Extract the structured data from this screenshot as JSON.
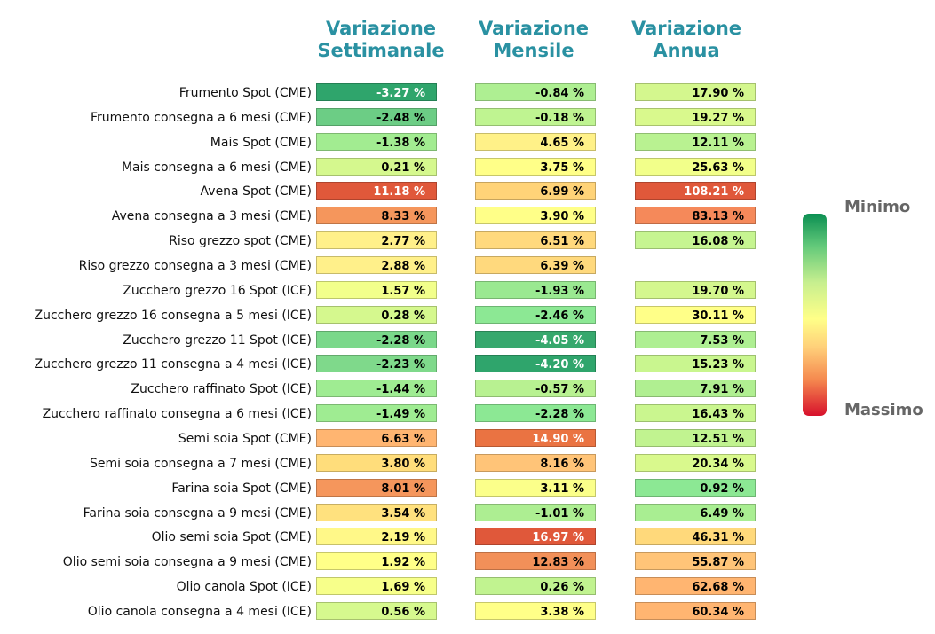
{
  "chart_data": {
    "type": "heatmap",
    "columns": [
      "Variazione Settimanale",
      "Variazione Mensile",
      "Variazione Annua"
    ],
    "rows": [
      "Frumento Spot (CME)",
      "Frumento consegna a 6 mesi (CME)",
      "Mais Spot (CME)",
      "Mais consegna a 6 mesi (CME)",
      "Avena Spot (CME)",
      "Avena consegna a 3 mesi (CME)",
      "Riso grezzo spot (CME)",
      "Riso grezzo consegna a 3 mesi (CME)",
      "Zucchero grezzo 16 Spot (ICE)",
      "Zucchero grezzo 16 consegna a 5 mesi (ICE)",
      "Zucchero grezzo 11 Spot (ICE)",
      "Zucchero grezzo 11 consegna a 4 mesi (ICE)",
      "Zucchero raffinato Spot (ICE)",
      "Zucchero raffinato consegna a 6 mesi (ICE)",
      "Semi soia Spot (CME)",
      "Semi soia consegna a 7 mesi (CME)",
      "Farina soia Spot (CME)",
      "Farina soia consegna a 9 mesi (CME)",
      "Olio semi soia Spot (CME)",
      "Olio semi soia consegna a 9 mesi (CME)",
      "Olio canola Spot (ICE)",
      "Olio canola consegna a 4 mesi (ICE)"
    ],
    "values": [
      [
        -3.27,
        -0.84,
        17.9
      ],
      [
        -2.48,
        -0.18,
        19.27
      ],
      [
        -1.38,
        4.65,
        12.11
      ],
      [
        0.21,
        3.75,
        25.63
      ],
      [
        11.18,
        6.99,
        108.21
      ],
      [
        8.33,
        3.9,
        83.13
      ],
      [
        2.77,
        6.51,
        16.08
      ],
      [
        2.88,
        6.39,
        null
      ],
      [
        1.57,
        -1.93,
        19.7
      ],
      [
        0.28,
        -2.46,
        30.11
      ],
      [
        -2.28,
        -4.05,
        7.53
      ],
      [
        -2.23,
        -4.2,
        15.23
      ],
      [
        -1.44,
        -0.57,
        7.91
      ],
      [
        -1.49,
        -2.28,
        16.43
      ],
      [
        6.63,
        14.9,
        12.51
      ],
      [
        3.8,
        8.16,
        20.34
      ],
      [
        8.01,
        3.11,
        0.92
      ],
      [
        3.54,
        -1.01,
        6.49
      ],
      [
        2.19,
        16.97,
        46.31
      ],
      [
        1.92,
        12.83,
        55.87
      ],
      [
        1.69,
        0.26,
        62.68
      ],
      [
        0.56,
        3.38,
        60.34
      ]
    ],
    "labels": [
      [
        "-3.27 %",
        "-0.84 %",
        "17.90 %"
      ],
      [
        "-2.48 %",
        "-0.18 %",
        "19.27 %"
      ],
      [
        "-1.38 %",
        "4.65 %",
        "12.11 %"
      ],
      [
        "0.21 %",
        "3.75 %",
        "25.63 %"
      ],
      [
        "11.18 %",
        "6.99 %",
        "108.21 %"
      ],
      [
        "8.33 %",
        "3.90 %",
        "83.13 %"
      ],
      [
        "2.77 %",
        "6.51 %",
        "16.08 %"
      ],
      [
        "2.88 %",
        "6.39 %",
        ""
      ],
      [
        "1.57 %",
        "-1.93 %",
        "19.70 %"
      ],
      [
        "0.28 %",
        "-2.46 %",
        "30.11 %"
      ],
      [
        "-2.28 %",
        "-4.05 %",
        "7.53 %"
      ],
      [
        "-2.23 %",
        "-4.20 %",
        "15.23 %"
      ],
      [
        "-1.44 %",
        "-0.57 %",
        "7.91 %"
      ],
      [
        "-1.49 %",
        "-2.28 %",
        "16.43 %"
      ],
      [
        "6.63 %",
        "14.90 %",
        "12.51 %"
      ],
      [
        "3.80 %",
        "8.16 %",
        "20.34 %"
      ],
      [
        "8.01 %",
        "3.11 %",
        "0.92 %"
      ],
      [
        "3.54 %",
        "-1.01 %",
        "6.49 %"
      ],
      [
        "2.19 %",
        "16.97 %",
        "46.31 %"
      ],
      [
        "1.92 %",
        "12.83 %",
        "55.87 %"
      ],
      [
        "1.69 %",
        "0.26 %",
        "62.68 %"
      ],
      [
        "0.56 %",
        "3.38 %",
        "60.34 %"
      ]
    ],
    "colors": [
      [
        "#2fa56c",
        "#aeef92",
        "#d4f78e"
      ],
      [
        "#6ccd85",
        "#bff491",
        "#d9f98d"
      ],
      [
        "#a2ec91",
        "#fff188",
        "#b9f291"
      ],
      [
        "#d5f88e",
        "#ffff88",
        "#f2ff8a"
      ],
      [
        "#e0583a",
        "#ffd378",
        "#e0583a"
      ],
      [
        "#f5965c",
        "#ffff88",
        "#f5895a"
      ],
      [
        "#fff08a",
        "#ffd97d",
        "#c6f591"
      ],
      [
        "#fff08a",
        "#ffd97d",
        null
      ],
      [
        "#f2ff8b",
        "#9ae991",
        "#d4f78e"
      ],
      [
        "#d5f88e",
        "#8ce894",
        "#ffff88"
      ],
      [
        "#7ad88a",
        "#36a86d",
        "#aeef92"
      ],
      [
        "#7fd98b",
        "#2fa56c",
        "#c9f68f"
      ],
      [
        "#9fec92",
        "#b8f191",
        "#b0ef91"
      ],
      [
        "#9fec92",
        "#8ce894",
        "#caf68f"
      ],
      [
        "#ffb571",
        "#ea7342",
        "#c1f390"
      ],
      [
        "#ffdd7b",
        "#ffc478",
        "#d9f98d"
      ],
      [
        "#f5965c",
        "#fbff8a",
        "#8ce894"
      ],
      [
        "#ffe17e",
        "#adee92",
        "#a9ee92"
      ],
      [
        "#fff888",
        "#e0583a",
        "#ffd97b"
      ],
      [
        "#ffff88",
        "#f29059",
        "#ffc478"
      ],
      [
        "#f7ff8a",
        "#c1f390",
        "#ffb571"
      ],
      [
        "#d6f98e",
        "#ffff88",
        "#ffb571"
      ]
    ],
    "dark_text_color": "#000000",
    "light_text_color": "#ffffff",
    "legend": {
      "top_label": "Minimo",
      "bottom_label": "Massimo",
      "placement": "right"
    }
  }
}
